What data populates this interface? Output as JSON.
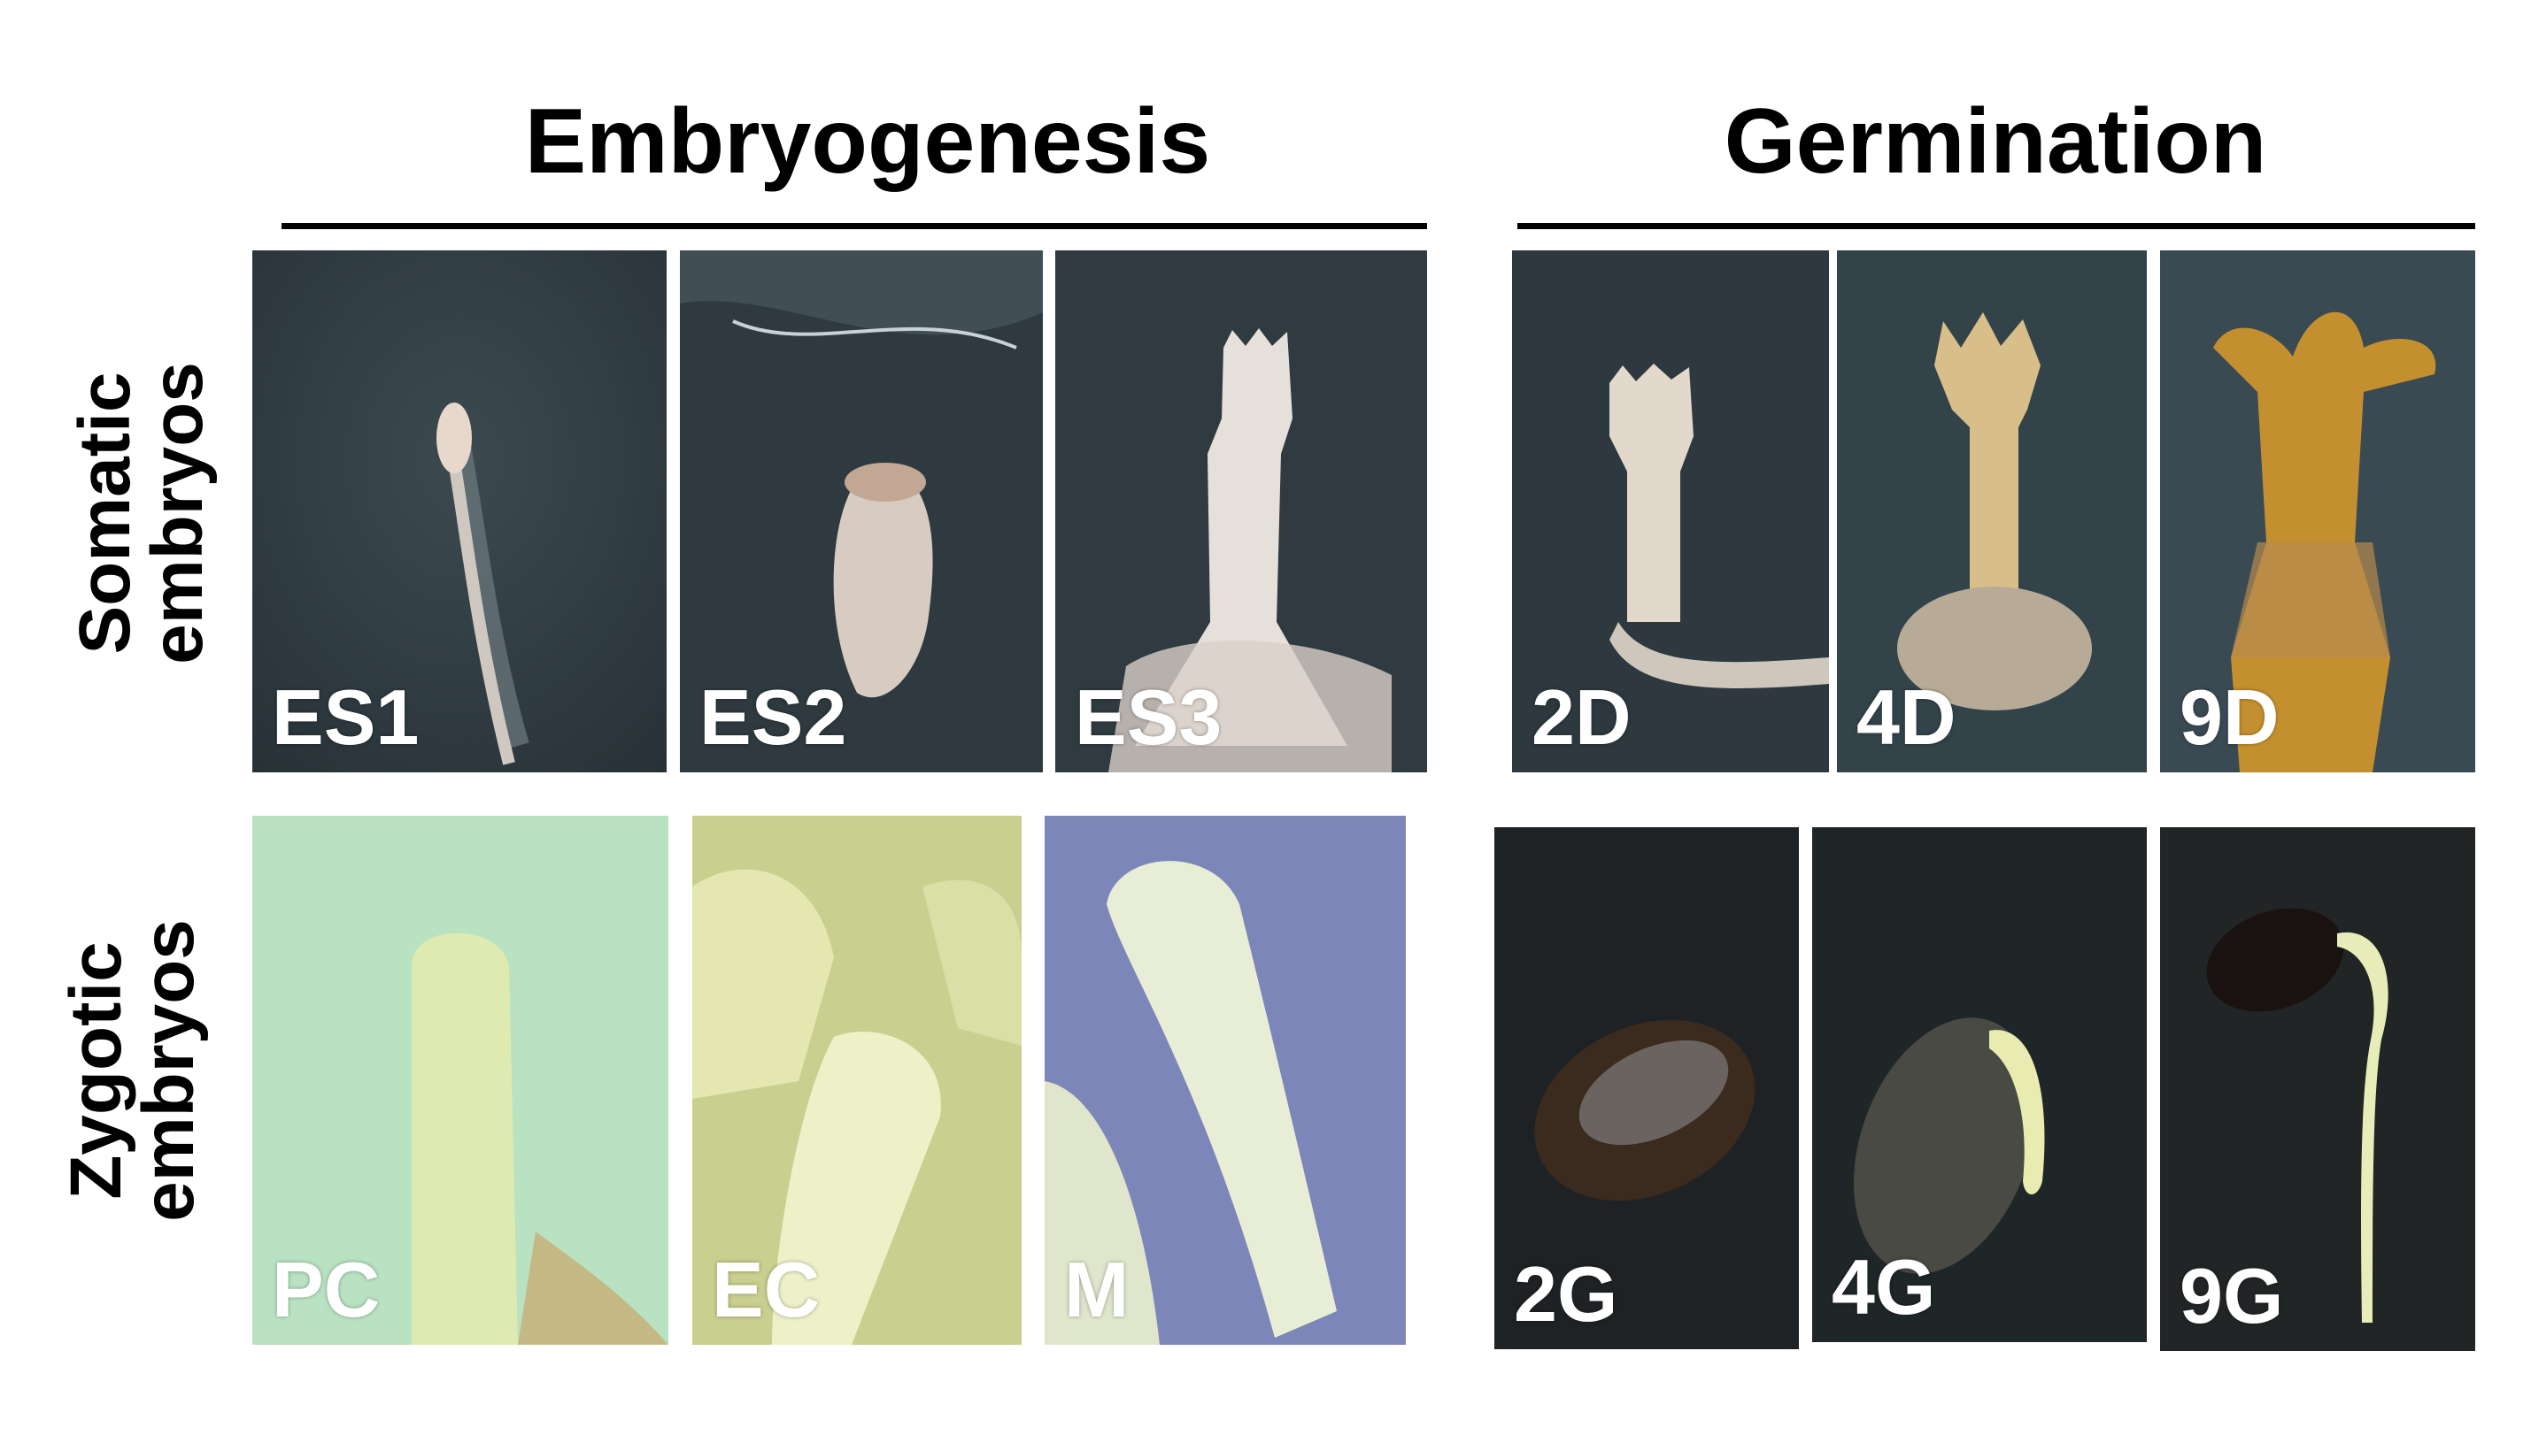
{
  "headers": {
    "embryogenesis": "Embryogenesis",
    "germination": "Germination"
  },
  "rows": {
    "somatic": {
      "line1": "Somatic",
      "line2": "embryos"
    },
    "zygotic": {
      "line1": "Zygotic",
      "line2": "embryos"
    }
  },
  "panels": {
    "es1": "ES1",
    "es2": "ES2",
    "es3": "ES3",
    "d2": "2D",
    "d4": "4D",
    "d9": "9D",
    "pc": "PC",
    "ec": "EC",
    "m": "M",
    "g2": "2G",
    "g4": "4G",
    "g9": "9G"
  },
  "colors": {
    "somatic_bg": "#2f3b40",
    "zygotic_pc_bg": "#b8e2c2",
    "zygotic_ec_bg": "#c9cf8e",
    "zygotic_m_bg": "#7d86b8",
    "germination_bg": "#1f2224"
  }
}
